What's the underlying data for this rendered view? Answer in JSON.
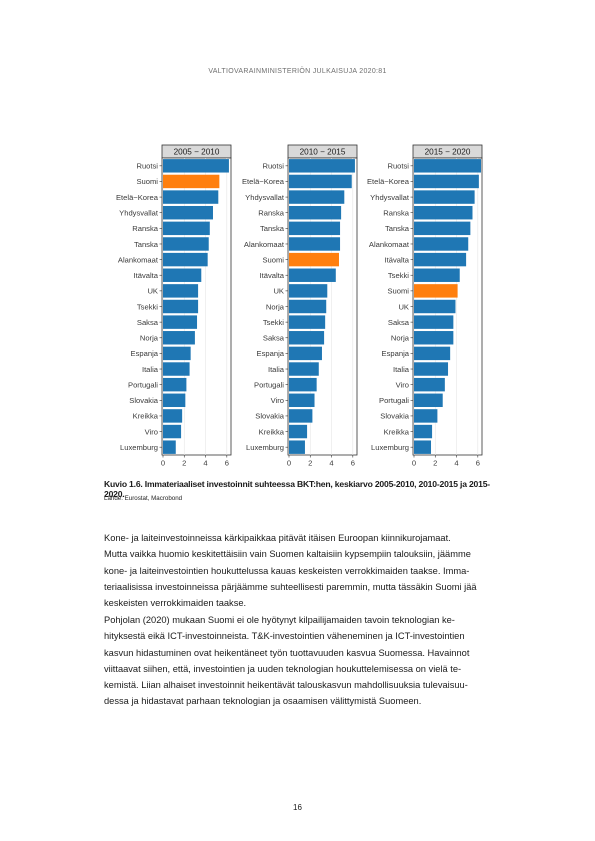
{
  "header": "VALTIOVARAINMINISTERIÖN JULKAISUJA 2020:81",
  "colors": {
    "bar": "#1F77B4",
    "highlight": "#FF7F0E",
    "panel_header": "#D9D9D9"
  },
  "chart_data": {
    "type": "bar",
    "orientation": "horizontal",
    "xlim": [
      0,
      6.3
    ],
    "xticks": [
      "0",
      "2",
      "4",
      "6"
    ],
    "highlight_category": "Suomi",
    "panels": [
      {
        "title": "2005 − 2010",
        "categories": [
          "Ruotsi",
          "Suomi",
          "Etelä−Korea",
          "Yhdysvallat",
          "Ranska",
          "Tanska",
          "Alankomaat",
          "Itävalta",
          "UK",
          "Tsekki",
          "Saksa",
          "Norja",
          "Espanja",
          "Italia",
          "Portugali",
          "Slovakia",
          "Kreikka",
          "Viro",
          "Luxemburg"
        ],
        "values": [
          6.2,
          5.3,
          5.2,
          4.7,
          4.4,
          4.3,
          4.2,
          3.6,
          3.3,
          3.3,
          3.2,
          3.0,
          2.6,
          2.5,
          2.2,
          2.1,
          1.8,
          1.7,
          1.2
        ]
      },
      {
        "title": "2010 − 2015",
        "categories": [
          "Ruotsi",
          "Etelä−Korea",
          "Yhdysvallat",
          "Ranska",
          "Tanska",
          "Alankomaat",
          "Suomi",
          "Itävalta",
          "UK",
          "Norja",
          "Tsekki",
          "Saksa",
          "Espanja",
          "Italia",
          "Portugali",
          "Viro",
          "Slovakia",
          "Kreikka",
          "Luxemburg"
        ],
        "values": [
          6.2,
          5.9,
          5.2,
          4.9,
          4.8,
          4.8,
          4.7,
          4.4,
          3.6,
          3.5,
          3.4,
          3.3,
          3.1,
          2.8,
          2.6,
          2.4,
          2.2,
          1.7,
          1.5
        ]
      },
      {
        "title": "2015 − 2020",
        "categories": [
          "Ruotsi",
          "Etelä−Korea",
          "Yhdysvallat",
          "Ranska",
          "Tanska",
          "Alankomaat",
          "Itävalta",
          "Tsekki",
          "Suomi",
          "UK",
          "Saksa",
          "Norja",
          "Espanja",
          "Italia",
          "Viro",
          "Portugali",
          "Slovakia",
          "Kreikka",
          "Luxemburg"
        ],
        "values": [
          6.3,
          6.1,
          5.7,
          5.5,
          5.3,
          5.1,
          4.9,
          4.3,
          4.1,
          3.9,
          3.7,
          3.7,
          3.4,
          3.2,
          2.9,
          2.7,
          2.2,
          1.7,
          1.6
        ]
      }
    ]
  },
  "caption": "Kuvio 1.6.    Immateriaaliset investoinnit suhteessa BKT:hen, keskiarvo 2005-2010, 2010-2015 ja 2015-2020.",
  "source": "Lähde: Eurostat, Macrobond",
  "paragraph1": [
    "Kone- ja laiteinvestoinneissa kärkipaikkaa pitävät itäisen Euroopan kiinnikurojamaat.",
    "Mutta vaikka huomio keskitettäisiin vain Suomen kaltaisiin kypsempiin talouksiin, jäämme",
    "kone- ja laiteinvestointien houkuttelussa kauas keskeisten verrokkimaiden taakse. Imma-",
    "teriaalisissa investoinneissa pärjäämme suhteellisesti paremmin, mutta tässäkin Suomi jää",
    "keskeisten verrokkimaiden taakse."
  ],
  "paragraph2": [
    "Pohjolan (2020) mukaan Suomi ei ole hyötynyt kilpailijamaiden tavoin teknologian ke-",
    "hityksestä eikä ICT-investoinneista. T&K-investointien väheneminen ja ICT-investointien",
    "kasvun hidastuminen ovat heikentäneet työn tuottavuuden kasvua Suomessa. Havainnot",
    "viittaavat siihen, että, investointien ja uuden teknologian houkuttelemisessa on vielä te-",
    "kemistä. Liian alhaiset investoinnit heikentävät talouskasvun mahdollisuuksia tulevaisuu-",
    "dessa ja hidastavat parhaan teknologian ja osaamisen välittymistä Suomeen."
  ],
  "page_number": "16"
}
